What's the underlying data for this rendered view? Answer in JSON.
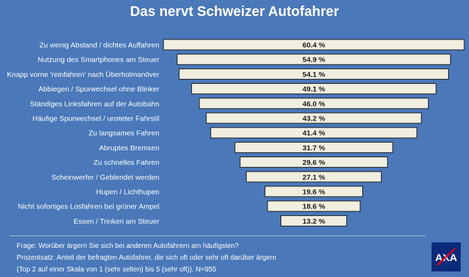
{
  "chart_data": {
    "type": "bar",
    "orientation": "horizontal",
    "title": "Das nervt Schweizer Autofahrer",
    "categories": [
      "Zu wenig Abstand / dichtes Auffahren",
      "Nutzung des Smartphones am Steuer",
      "Knapp vorne 'reinfahren' nach Überholmanöver",
      "Abbiegen / Spurwechsel ohne Blinker",
      "Ständiges Linksfahren auf der Autobahn",
      "Häufige Spurwechsel / unsteter Fahrstil",
      "Zu langsames Fahren",
      "Abruptes Bremsen",
      "Zu schnelles Fahren",
      "Scheinwerfer / Geblendet werden",
      "Hupen / Lichthupen",
      "Nicht sofortiges Losfahren bei grüner Ampel",
      "Essen / Trinken am Steuer"
    ],
    "values": [
      60.4,
      54.9,
      54.1,
      49.1,
      46.0,
      43.2,
      41.4,
      31.7,
      29.6,
      27.1,
      19.6,
      18.6,
      13.2
    ],
    "value_labels": [
      "60.4 %",
      "54.9 %",
      "54.1 %",
      "49.1 %",
      "46.0 %",
      "43.2 %",
      "41.4 %",
      "31.7 %",
      "29.6 %",
      "27.1 %",
      "19.6 %",
      "18.6 %",
      "13.2 %"
    ],
    "alignment": "centered (funnel)",
    "bar_color": "#f1eee0",
    "background_color": "#4a78b9"
  },
  "notes": {
    "line1": "Frage: Worüber ärgern Sie sich bei anderen Autofahrern am häufigsten?",
    "line2": "Prozentsatz: Anteil der befragten Autofahrer, die sich oft oder sehr oft darüber ärgern",
    "line3": "(Top 2 auf einer Skala von 1 (sehr selten) bis 5 (sehr oft)). N=955"
  },
  "logo": {
    "text": "AXA",
    "icon": "axa-logo-icon",
    "color": "#0b2a7a",
    "accent": "#e2001a"
  }
}
